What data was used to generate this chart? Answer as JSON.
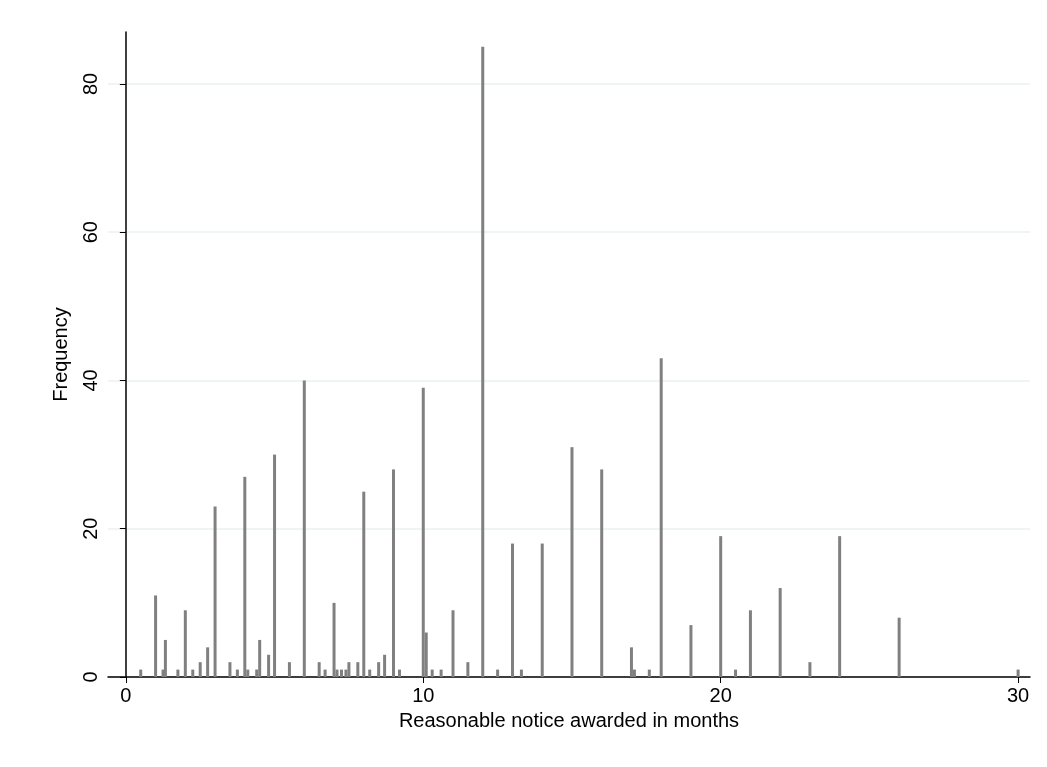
{
  "chart_data": {
    "type": "bar",
    "xlabel": "Reasonable notice awarded in months",
    "ylabel": "Frequency",
    "x": [
      0.5,
      1,
      1.25,
      1.33,
      1.75,
      2,
      2.25,
      2.5,
      2.75,
      3,
      3.5,
      3.75,
      4,
      4.1,
      4.4,
      4.5,
      4.8,
      5,
      5.5,
      6,
      6.5,
      6.7,
      7,
      7.1,
      7.25,
      7.4,
      7.5,
      7.8,
      8,
      8.2,
      8.5,
      8.7,
      9,
      9.2,
      10,
      10.1,
      10.3,
      10.6,
      11,
      11.5,
      12,
      12.5,
      13,
      13.3,
      14,
      15,
      16,
      17,
      17.1,
      17.6,
      18,
      19,
      20,
      20.5,
      21,
      22,
      23,
      24,
      26,
      30
    ],
    "values": [
      1,
      11,
      1,
      5,
      1,
      9,
      1,
      2,
      4,
      23,
      2,
      1,
      27,
      1,
      1,
      5,
      3,
      30,
      2,
      40,
      2,
      1,
      10,
      1,
      1,
      1,
      2,
      2,
      25,
      1,
      2,
      3,
      28,
      1,
      39,
      6,
      1,
      1,
      9,
      2,
      85,
      1,
      18,
      1,
      18,
      31,
      28,
      4,
      1,
      1,
      43,
      7,
      19,
      1,
      9,
      12,
      2,
      19,
      8,
      1
    ],
    "color": "#808080",
    "xlim": [
      -0.6,
      30.4
    ],
    "xticks": [
      0,
      10,
      20,
      30
    ],
    "ylim": [
      0,
      87
    ],
    "yticks": [
      0,
      20,
      40,
      60,
      80
    ],
    "grid": "y"
  }
}
